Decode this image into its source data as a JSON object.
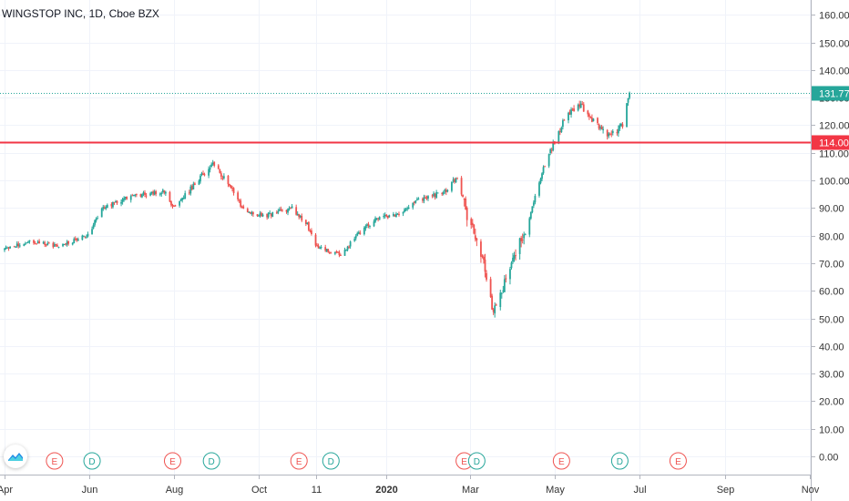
{
  "header": {
    "title": "WINGSTOP INC, 1D, Cboe BZX"
  },
  "price_badges": [
    {
      "label": "131.77",
      "value": 131.77,
      "color": "#26a69a",
      "line": "dotted"
    },
    {
      "label": "114.00",
      "value": 114.0,
      "color": "#f23645",
      "line": "solid"
    }
  ],
  "logo": {
    "icon": "tradingview-logo-icon"
  },
  "colors": {
    "up": "#26a69a",
    "down": "#ef5350",
    "grid": "#f0f3fa",
    "axis_text": "#333333"
  },
  "chart_data": {
    "type": "candlestick",
    "title": "WINGSTOP INC, 1D, Cboe BZX",
    "ylim": [
      -5,
      165
    ],
    "y_ticks": [
      0,
      10,
      20,
      30,
      40,
      50,
      60,
      70,
      80,
      90,
      100,
      110,
      120,
      130,
      140,
      150,
      160
    ],
    "y_tick_labels": [
      "0.00",
      "10.00",
      "20.00",
      "30.00",
      "40.00",
      "50.00",
      "60.00",
      "70.00",
      "80.00",
      "90.00",
      "100.00",
      "110.00",
      "120.00",
      "130.00",
      "140.00",
      "150.00",
      "160.00"
    ],
    "x_tick_labels": [
      {
        "label": "Apr",
        "date": "2019-04"
      },
      {
        "label": "Jun",
        "date": "2019-06"
      },
      {
        "label": "Aug",
        "date": "2019-08"
      },
      {
        "label": "Oct",
        "date": "2019-10"
      },
      {
        "label": "11",
        "date": "2019-11-11"
      },
      {
        "label": "2020",
        "date": "2020-01"
      },
      {
        "label": "Mar",
        "date": "2020-03"
      },
      {
        "label": "May",
        "date": "2020-05"
      },
      {
        "label": "Jul",
        "date": "2020-07"
      },
      {
        "label": "Sep",
        "date": "2020-09"
      },
      {
        "label": "Nov",
        "date": "2020-11"
      }
    ],
    "anchors": [
      {
        "date": "2019-04-01",
        "close": 75
      },
      {
        "date": "2019-04-20",
        "close": 78
      },
      {
        "date": "2019-05-10",
        "close": 76
      },
      {
        "date": "2019-05-31",
        "close": 80
      },
      {
        "date": "2019-06-10",
        "close": 90
      },
      {
        "date": "2019-06-25",
        "close": 93
      },
      {
        "date": "2019-07-10",
        "close": 95
      },
      {
        "date": "2019-07-25",
        "close": 96
      },
      {
        "date": "2019-08-01",
        "close": 90
      },
      {
        "date": "2019-08-15",
        "close": 98
      },
      {
        "date": "2019-08-28",
        "close": 106
      },
      {
        "date": "2019-09-10",
        "close": 99
      },
      {
        "date": "2019-09-20",
        "close": 89
      },
      {
        "date": "2019-10-05",
        "close": 87
      },
      {
        "date": "2019-10-25",
        "close": 90
      },
      {
        "date": "2019-11-05",
        "close": 84
      },
      {
        "date": "2019-11-11",
        "close": 76
      },
      {
        "date": "2019-11-30",
        "close": 73
      },
      {
        "date": "2019-12-10",
        "close": 80
      },
      {
        "date": "2019-12-25",
        "close": 86
      },
      {
        "date": "2020-01-10",
        "close": 88
      },
      {
        "date": "2020-01-25",
        "close": 93
      },
      {
        "date": "2020-02-12",
        "close": 96
      },
      {
        "date": "2020-02-21",
        "close": 101
      },
      {
        "date": "2020-02-28",
        "close": 88
      },
      {
        "date": "2020-03-10",
        "close": 72
      },
      {
        "date": "2020-03-18",
        "close": 52
      },
      {
        "date": "2020-03-23",
        "close": 58
      },
      {
        "date": "2020-04-01",
        "close": 73
      },
      {
        "date": "2020-04-10",
        "close": 80
      },
      {
        "date": "2020-04-20",
        "close": 100
      },
      {
        "date": "2020-04-30",
        "close": 113
      },
      {
        "date": "2020-05-10",
        "close": 124
      },
      {
        "date": "2020-05-20",
        "close": 127
      },
      {
        "date": "2020-05-30",
        "close": 121
      },
      {
        "date": "2020-06-10",
        "close": 116
      },
      {
        "date": "2020-06-19",
        "close": 120
      },
      {
        "date": "2020-06-24",
        "close": 131.77
      }
    ],
    "events": [
      {
        "type": "E",
        "date": "2019-05-07"
      },
      {
        "type": "D",
        "date": "2019-06-03"
      },
      {
        "type": "E",
        "date": "2019-07-31"
      },
      {
        "type": "D",
        "date": "2019-08-28"
      },
      {
        "type": "E",
        "date": "2019-10-30"
      },
      {
        "type": "D",
        "date": "2019-11-22"
      },
      {
        "type": "E",
        "date": "2020-02-26"
      },
      {
        "type": "D",
        "date": "2020-03-06"
      },
      {
        "type": "E",
        "date": "2020-05-06"
      },
      {
        "type": "D",
        "date": "2020-06-17"
      },
      {
        "type": "E",
        "date": "2020-07-29"
      }
    ]
  }
}
